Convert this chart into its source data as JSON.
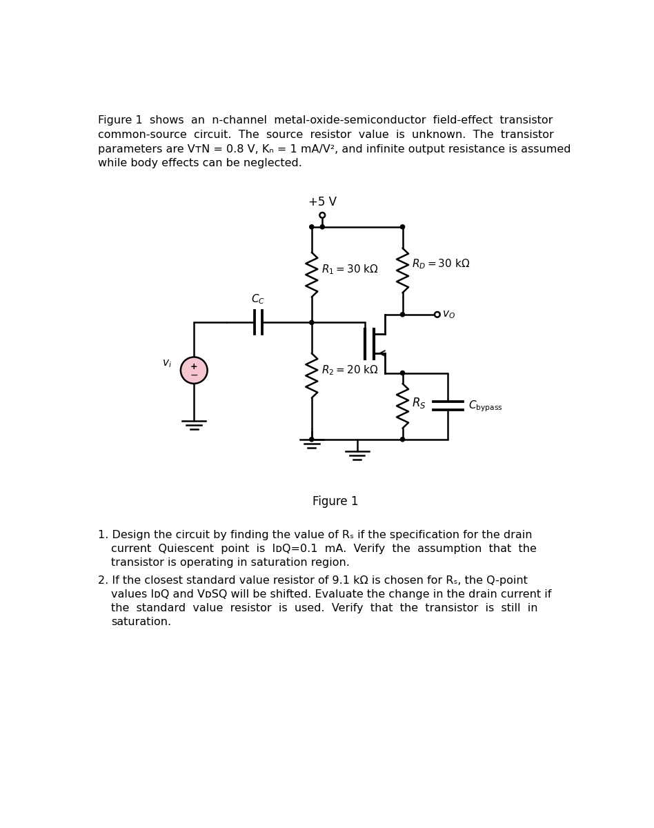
{
  "bg_color": "#ffffff",
  "text_color": "#000000",
  "para_line1": "Figure 1  shows  an  n-channel  metal-oxide-semiconductor  field-effect  transistor",
  "para_line2": "common-source  circuit.  The  source  resistor  value  is  unknown.  The  transistor",
  "para_line3": "parameters are VᴛN = 0.8 V, Kₙ = 1 mA/V², and infinite output resistance is assumed",
  "para_line4": "while body effects can be neglected.",
  "figure_label": "Figure 1",
  "q1_line1": "1. Design the circuit by finding the value of Rₛ if the specification for the drain",
  "q1_line2": "    current  Quiescent  point  is  IᴅQ=0.1  mA.  Verify  the  assumption  that  the",
  "q1_line3": "    transistor is operating in saturation region.",
  "q2_line1": "2. If the closest standard value resistor of 9.1 kΩ is chosen for Rₛ, the Q-point",
  "q2_line2": "    values IᴅQ and VᴅSQ will be shifted. Evaluate the change in the drain current if",
  "q2_line3": "    the  standard  value  resistor  is  used.  Verify  that  the  transistor  is  still  in",
  "q2_line4": "    saturation."
}
